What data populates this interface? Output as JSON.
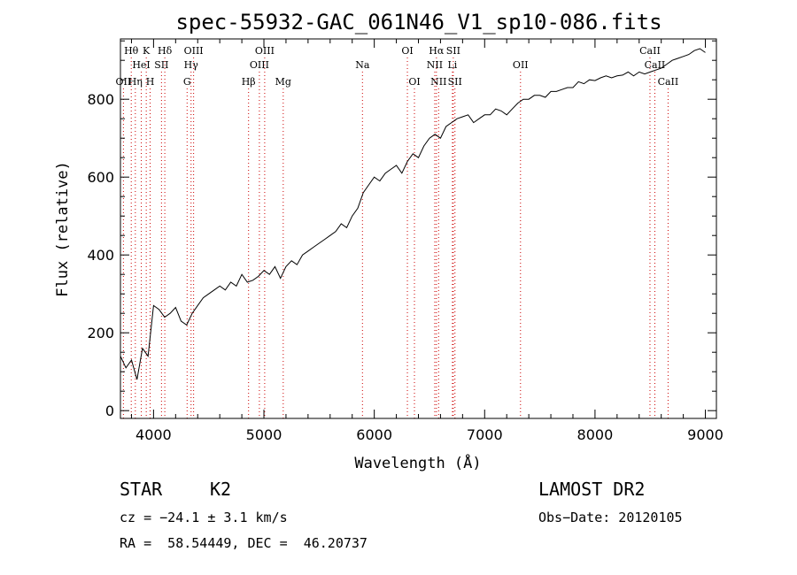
{
  "chart_data": {
    "type": "line",
    "title": "spec-55932-GAC_061N46_V1_sp10-086.fits",
    "xlabel": "Wavelength (Å)",
    "ylabel": "Flux (relative)",
    "xlim": [
      3700,
      9100
    ],
    "ylim": [
      -20,
      955
    ],
    "xticks": [
      4000,
      5000,
      6000,
      7000,
      8000,
      9000
    ],
    "yticks": [
      0,
      200,
      400,
      600,
      800
    ],
    "x_minor_step": 200,
    "y_minor_step": 50,
    "grid": false,
    "series": [
      {
        "x": [
          3700,
          3750,
          3800,
          3850,
          3900,
          3950,
          4000,
          4050,
          4100,
          4150,
          4200,
          4250,
          4300,
          4350,
          4400,
          4450,
          4500,
          4550,
          4600,
          4650,
          4700,
          4750,
          4800,
          4850,
          4900,
          4950,
          5000,
          5050,
          5100,
          5150,
          5200,
          5250,
          5300,
          5350,
          5400,
          5450,
          5500,
          5550,
          5600,
          5650,
          5700,
          5750,
          5800,
          5850,
          5900,
          5950,
          6000,
          6050,
          6100,
          6150,
          6200,
          6250,
          6300,
          6350,
          6400,
          6450,
          6500,
          6550,
          6600,
          6650,
          6700,
          6750,
          6800,
          6850,
          6900,
          6950,
          7000,
          7050,
          7100,
          7150,
          7200,
          7250,
          7300,
          7350,
          7400,
          7450,
          7500,
          7550,
          7600,
          7650,
          7700,
          7750,
          7800,
          7850,
          7900,
          7950,
          8000,
          8050,
          8100,
          8150,
          8200,
          8250,
          8300,
          8350,
          8400,
          8450,
          8500,
          8550,
          8600,
          8650,
          8700,
          8750,
          8800,
          8850,
          8900,
          8950,
          9000
        ],
        "y": [
          140,
          110,
          130,
          80,
          160,
          140,
          270,
          260,
          240,
          250,
          265,
          230,
          220,
          250,
          270,
          290,
          300,
          310,
          320,
          310,
          330,
          320,
          350,
          330,
          335,
          345,
          360,
          350,
          370,
          340,
          370,
          385,
          375,
          400,
          410,
          420,
          430,
          440,
          450,
          460,
          480,
          470,
          500,
          520,
          560,
          580,
          600,
          590,
          610,
          620,
          630,
          610,
          640,
          660,
          650,
          680,
          700,
          710,
          700,
          730,
          740,
          750,
          755,
          760,
          740,
          750,
          760,
          760,
          775,
          770,
          760,
          775,
          790,
          800,
          800,
          810,
          810,
          805,
          820,
          820,
          825,
          830,
          830,
          845,
          840,
          850,
          848,
          855,
          860,
          855,
          860,
          862,
          870,
          860,
          870,
          865,
          870,
          875,
          880,
          890,
          900,
          905,
          910,
          915,
          925,
          930,
          920
        ]
      }
    ],
    "spectral_lines": [
      {
        "label": "Hθ",
        "wavelength": 3798,
        "row": 0
      },
      {
        "label": "K",
        "wavelength": 3934,
        "row": 0
      },
      {
        "label": "Hδ",
        "wavelength": 4102,
        "row": 0
      },
      {
        "label": "OIII",
        "wavelength": 4363,
        "row": 0
      },
      {
        "label": "OIII",
        "wavelength": 5007,
        "row": 0
      },
      {
        "label": "OI",
        "wavelength": 6300,
        "row": 0
      },
      {
        "label": "Hα",
        "wavelength": 6563,
        "row": 0
      },
      {
        "label": "SII",
        "wavelength": 6716,
        "row": 0
      },
      {
        "label": "CaII",
        "wavelength": 8498,
        "row": 0
      },
      {
        "label": "HeI",
        "wavelength": 3889,
        "row": 1
      },
      {
        "label": "SII",
        "wavelength": 4072,
        "row": 1
      },
      {
        "label": "Hγ",
        "wavelength": 4340,
        "row": 1
      },
      {
        "label": "OIII",
        "wavelength": 4959,
        "row": 1
      },
      {
        "label": "Na",
        "wavelength": 5893,
        "row": 1
      },
      {
        "label": "NII",
        "wavelength": 6548,
        "row": 1
      },
      {
        "label": "Li",
        "wavelength": 6708,
        "row": 1
      },
      {
        "label": "OII",
        "wavelength": 7325,
        "row": 1
      },
      {
        "label": "CaII",
        "wavelength": 8542,
        "row": 1
      },
      {
        "label": "OII",
        "wavelength": 3727,
        "row": 2
      },
      {
        "label": "Hη",
        "wavelength": 3835,
        "row": 2
      },
      {
        "label": "H",
        "wavelength": 3969,
        "row": 2
      },
      {
        "label": "G",
        "wavelength": 4304,
        "row": 2
      },
      {
        "label": "Hβ",
        "wavelength": 4861,
        "row": 2
      },
      {
        "label": "Mg",
        "wavelength": 5175,
        "row": 2
      },
      {
        "label": "OI",
        "wavelength": 6364,
        "row": 2
      },
      {
        "label": "NII",
        "wavelength": 6583,
        "row": 2
      },
      {
        "label": "SII",
        "wavelength": 6731,
        "row": 2
      },
      {
        "label": "CaII",
        "wavelength": 8662,
        "row": 2
      }
    ]
  },
  "info": {
    "object_class": "STAR",
    "subclass": "K2",
    "survey": "LAMOST DR2",
    "cz": "cz = −24.1 ± 3.1 km/s",
    "obs_date": "Obs−Date: 20120105",
    "coords": "RA =  58.54449, DEC =  46.20737"
  }
}
